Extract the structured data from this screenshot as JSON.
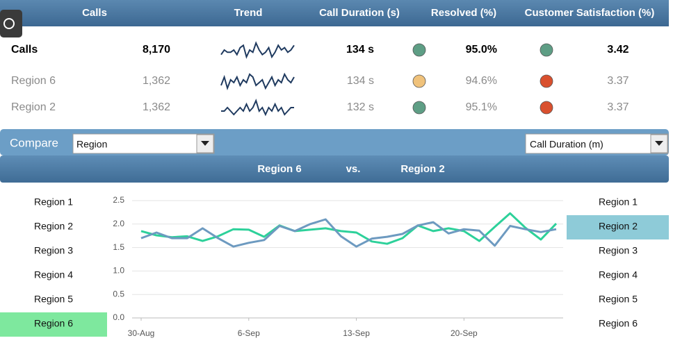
{
  "header": {
    "columns": [
      "Calls",
      "Trend",
      "Call Duration (s)",
      "Resolved (%)",
      "Customer Satisfaction (%)"
    ]
  },
  "table": {
    "rows": [
      {
        "name": "Calls",
        "calls": "8,170",
        "trend": [
          4,
          6,
          5,
          5,
          6,
          4,
          7,
          8,
          3,
          6,
          5,
          9,
          6,
          4,
          5,
          7,
          3,
          5,
          8,
          6,
          7,
          5,
          6,
          8
        ],
        "duration": "134 s",
        "resolved_color": "#5e9e85",
        "resolved": "95.0%",
        "satisfaction_color": "#5e9e85",
        "satisfaction": "3.42"
      },
      {
        "name": "Region 6",
        "calls": "1,362",
        "trend": [
          4,
          7,
          3,
          6,
          5,
          7,
          4,
          6,
          5,
          8,
          7,
          4,
          5,
          6,
          3,
          5,
          7,
          4,
          6,
          5,
          8,
          6,
          5,
          7
        ],
        "duration": "134 s",
        "resolved_color": "#f0c27b",
        "resolved": "94.6%",
        "satisfaction_color": "#d9502e",
        "satisfaction": "3.37"
      },
      {
        "name": "Region 2",
        "calls": "1,362",
        "trend": [
          5,
          5,
          6,
          5,
          4,
          5,
          6,
          5,
          7,
          5,
          6,
          8,
          5,
          6,
          4,
          6,
          5,
          7,
          5,
          6,
          4,
          5,
          6,
          6
        ],
        "duration": "132 s",
        "resolved_color": "#5e9e85",
        "resolved": "95.1%",
        "satisfaction_color": "#d9502e",
        "satisfaction": "3.37"
      }
    ]
  },
  "compare": {
    "label": "Compare",
    "dropdown_left": "Region",
    "dropdown_right": "Call Duration (m)"
  },
  "banner": {
    "left": "Region 6",
    "vs": "vs.",
    "right": "Region 2"
  },
  "left_list": {
    "items": [
      "Region 1",
      "Region 2",
      "Region 3",
      "Region 4",
      "Region 5",
      "Region 6"
    ],
    "selected": 5,
    "color": "#7ee89e"
  },
  "right_list": {
    "items": [
      "Region 1",
      "Region 2",
      "Region 3",
      "Region 4",
      "Region 5",
      "Region 6"
    ],
    "selected": 1,
    "color": "#8ecbd8"
  },
  "chart_data": {
    "type": "line",
    "categories": [
      "30-Aug",
      null,
      null,
      null,
      null,
      null,
      null,
      "6-Sep",
      null,
      null,
      null,
      null,
      null,
      null,
      "13-Sep",
      null,
      null,
      null,
      null,
      null,
      null,
      "20-Sep",
      null,
      null,
      null,
      null,
      null,
      null
    ],
    "series": [
      {
        "name": "Region 6",
        "color": "#2dd19a",
        "values": [
          1.85,
          1.76,
          1.72,
          1.74,
          1.64,
          1.74,
          1.89,
          1.88,
          1.73,
          1.97,
          1.85,
          1.88,
          1.91,
          1.85,
          1.82,
          1.63,
          1.58,
          1.7,
          1.97,
          1.85,
          1.91,
          1.85,
          1.64,
          1.94,
          2.23,
          1.92,
          1.67,
          2.01
        ]
      },
      {
        "name": "Region 2",
        "color": "#6d9ac0",
        "values": [
          1.7,
          1.82,
          1.7,
          1.7,
          1.91,
          1.7,
          1.52,
          1.6,
          1.66,
          1.96,
          1.85,
          2.0,
          2.1,
          1.74,
          1.52,
          1.69,
          1.73,
          1.79,
          1.97,
          2.04,
          1.8,
          1.89,
          1.86,
          1.54,
          1.96,
          1.89,
          1.83,
          1.89
        ]
      }
    ],
    "ylim": [
      0,
      2.5
    ],
    "yticks": [
      {
        "value": 0,
        "label": "0.0"
      },
      {
        "value": 0.5,
        "label": "0.5"
      },
      {
        "value": 1,
        "label": "1.0"
      },
      {
        "value": 1.5,
        "label": "1.5"
      },
      {
        "value": 2,
        "label": "2.0"
      },
      {
        "value": 2.5,
        "label": "2.5"
      }
    ],
    "grid": true
  }
}
